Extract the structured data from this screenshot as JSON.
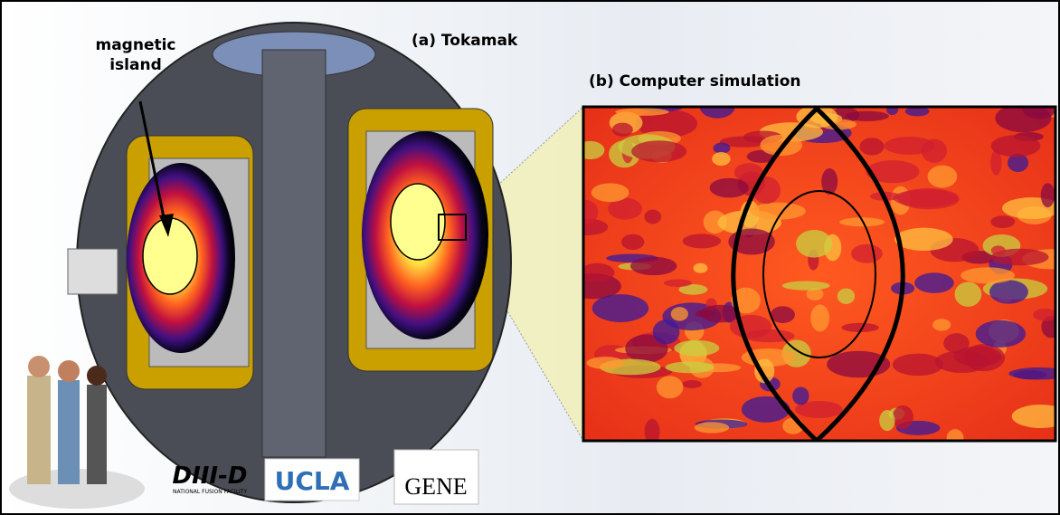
{
  "annotations": {
    "island_label": [
      "magnetic",
      "island"
    ],
    "tokamak_label": "(a) Tokamak",
    "simulation_label": "(b) Computer simulation"
  },
  "logos": {
    "diiid": {
      "name": "DIII-D",
      "subtitle": "NATIONAL FUSION FACILITY"
    },
    "ucla": "UCLA",
    "gene": "GENE"
  }
}
